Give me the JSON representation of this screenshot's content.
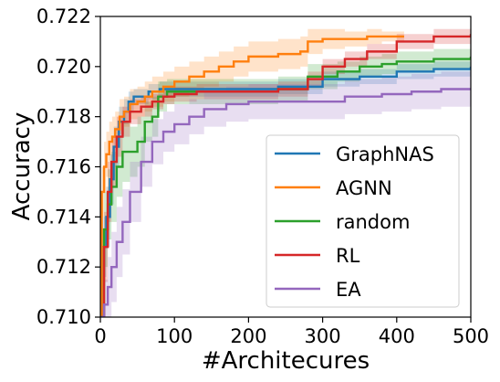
{
  "chart_data": {
    "type": "line",
    "title": "",
    "xlabel": "#Architecures",
    "ylabel": "Accuracy",
    "xlim": [
      0,
      500
    ],
    "ylim": [
      0.71,
      0.722
    ],
    "xticks": [
      "0",
      "100",
      "200",
      "300",
      "400",
      "500"
    ],
    "yticks": [
      "0.710",
      "0.712",
      "0.714",
      "0.716",
      "0.718",
      "0.720",
      "0.722"
    ],
    "grid": false,
    "legend_position": "lower-right",
    "series": [
      {
        "name": "GraphNAS",
        "color": "#1f77b4",
        "x": [
          0,
          4,
          8,
          13,
          18,
          25,
          32,
          38,
          45,
          55,
          65,
          80,
          110,
          140,
          180,
          240,
          300,
          350,
          400,
          450,
          500
        ],
        "y": [
          0.71,
          0.7128,
          0.714,
          0.7155,
          0.7168,
          0.7178,
          0.7182,
          0.7186,
          0.7188,
          0.7188,
          0.719,
          0.7191,
          0.7191,
          0.7191,
          0.7191,
          0.7192,
          0.7195,
          0.7196,
          0.7198,
          0.7199,
          0.72
        ],
        "band": [
          0.0002,
          0.0012,
          0.0012,
          0.001,
          0.0008,
          0.0006,
          0.0005,
          0.0004,
          0.0003,
          0.0003,
          0.0003,
          0.0003,
          0.0003,
          0.0003,
          0.0003,
          0.0003,
          0.0003,
          0.0003,
          0.0003,
          0.0003,
          0.0003
        ]
      },
      {
        "name": "AGNN",
        "color": "#ff7f0e",
        "x": [
          0,
          2,
          5,
          8,
          12,
          16,
          20,
          26,
          32,
          40,
          50,
          60,
          70,
          85,
          100,
          120,
          140,
          160,
          180,
          200,
          240,
          270,
          280,
          300,
          330,
          360,
          380,
          410
        ],
        "y": [
          0.71,
          0.715,
          0.716,
          0.7165,
          0.717,
          0.7172,
          0.7175,
          0.718,
          0.7182,
          0.7185,
          0.7186,
          0.7188,
          0.719,
          0.7192,
          0.7194,
          0.7196,
          0.7198,
          0.72,
          0.7202,
          0.7204,
          0.7205,
          0.7206,
          0.721,
          0.7211,
          0.7211,
          0.7212,
          0.7212,
          0.7212
        ],
        "band": [
          0.0003,
          0.001,
          0.001,
          0.0009,
          0.0008,
          0.0008,
          0.0007,
          0.0007,
          0.0006,
          0.0006,
          0.0006,
          0.0006,
          0.0006,
          0.0006,
          0.0006,
          0.0006,
          0.0006,
          0.0006,
          0.0006,
          0.0006,
          0.0006,
          0.0006,
          0.0005,
          0.0004,
          0.0003,
          0.0003,
          0.0002,
          0.0002
        ]
      },
      {
        "name": "random",
        "color": "#2ca02c",
        "x": [
          0,
          5,
          10,
          15,
          22,
          30,
          40,
          50,
          60,
          70,
          78,
          90,
          110,
          150,
          200,
          240,
          280,
          320,
          350,
          380,
          400,
          450,
          500
        ],
        "y": [
          0.71,
          0.7135,
          0.7145,
          0.7152,
          0.716,
          0.7166,
          0.7166,
          0.717,
          0.7178,
          0.718,
          0.7188,
          0.719,
          0.719,
          0.719,
          0.719,
          0.7191,
          0.7196,
          0.7198,
          0.72,
          0.7201,
          0.7202,
          0.7203,
          0.7204
        ],
        "band": [
          0.0003,
          0.0015,
          0.0014,
          0.0014,
          0.0012,
          0.0012,
          0.001,
          0.001,
          0.0008,
          0.0008,
          0.0006,
          0.0005,
          0.0005,
          0.0005,
          0.0005,
          0.0005,
          0.0005,
          0.0004,
          0.0004,
          0.0004,
          0.0004,
          0.0004,
          0.0003
        ]
      },
      {
        "name": "RL",
        "color": "#d62728",
        "x": [
          0,
          5,
          10,
          15,
          22,
          30,
          40,
          55,
          70,
          85,
          100,
          130,
          160,
          200,
          240,
          280,
          300,
          330,
          360,
          400,
          450,
          500
        ],
        "y": [
          0.71,
          0.7128,
          0.715,
          0.7162,
          0.7172,
          0.7178,
          0.7182,
          0.7184,
          0.7186,
          0.7188,
          0.7189,
          0.719,
          0.719,
          0.719,
          0.7191,
          0.7195,
          0.72,
          0.7203,
          0.7206,
          0.721,
          0.7212,
          0.7213
        ],
        "band": [
          0.0003,
          0.0014,
          0.0012,
          0.001,
          0.0008,
          0.0006,
          0.0005,
          0.0004,
          0.0003,
          0.0003,
          0.0003,
          0.0003,
          0.0003,
          0.0003,
          0.0003,
          0.0003,
          0.0003,
          0.0003,
          0.0003,
          0.0003,
          0.0003,
          0.0003
        ]
      },
      {
        "name": "EA",
        "color": "#9467bd",
        "x": [
          0,
          5,
          10,
          15,
          22,
          30,
          40,
          55,
          70,
          85,
          100,
          120,
          140,
          170,
          200,
          250,
          300,
          330,
          380,
          420,
          460,
          500
        ],
        "y": [
          0.71,
          0.7105,
          0.7112,
          0.712,
          0.713,
          0.7138,
          0.715,
          0.7162,
          0.717,
          0.7174,
          0.7177,
          0.718,
          0.7183,
          0.7185,
          0.7186,
          0.7186,
          0.7186,
          0.7188,
          0.7189,
          0.719,
          0.7191,
          0.7191
        ],
        "band": [
          0.0003,
          0.001,
          0.0012,
          0.0014,
          0.0014,
          0.0013,
          0.0012,
          0.001,
          0.0009,
          0.0008,
          0.0008,
          0.0007,
          0.0007,
          0.0007,
          0.0007,
          0.0007,
          0.0007,
          0.0007,
          0.0007,
          0.0007,
          0.0007,
          0.0007
        ]
      }
    ]
  }
}
